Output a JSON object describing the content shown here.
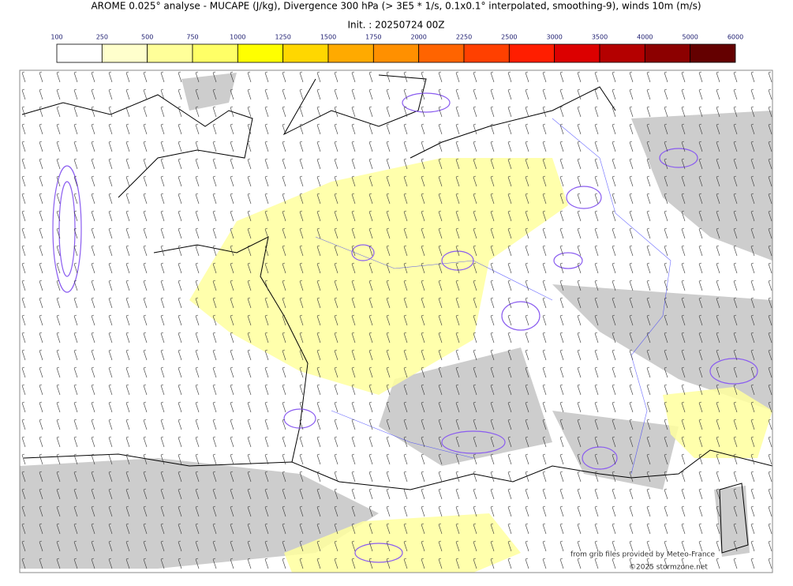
{
  "header": {
    "title": "AROME 0.025° analyse - MUCAPE (J/kg), Divergence 300 hPa (> 3E5 * 1/s, 0.1x0.1° interpolated, smoothing-9), winds 10m (m/s)",
    "init": "Init. : 20250724 00Z"
  },
  "colorbar": {
    "ticks": [
      100,
      250,
      500,
      750,
      1000,
      1250,
      1500,
      1750,
      2000,
      2250,
      2500,
      3000,
      3500,
      4000,
      5000,
      6000
    ],
    "colors": [
      "#ffffff",
      "#ffffcc",
      "#ffff99",
      "#ffff66",
      "#ffff00",
      "#ffd700",
      "#ffaa00",
      "#ff9000",
      "#ff6400",
      "#ff4000",
      "#ff1e00",
      "#dc0000",
      "#b40000",
      "#8c0000",
      "#640000"
    ]
  },
  "credits": {
    "source": "from grib files provided by Meteo-France",
    "copyright": "©2025 stormzone.net"
  }
}
